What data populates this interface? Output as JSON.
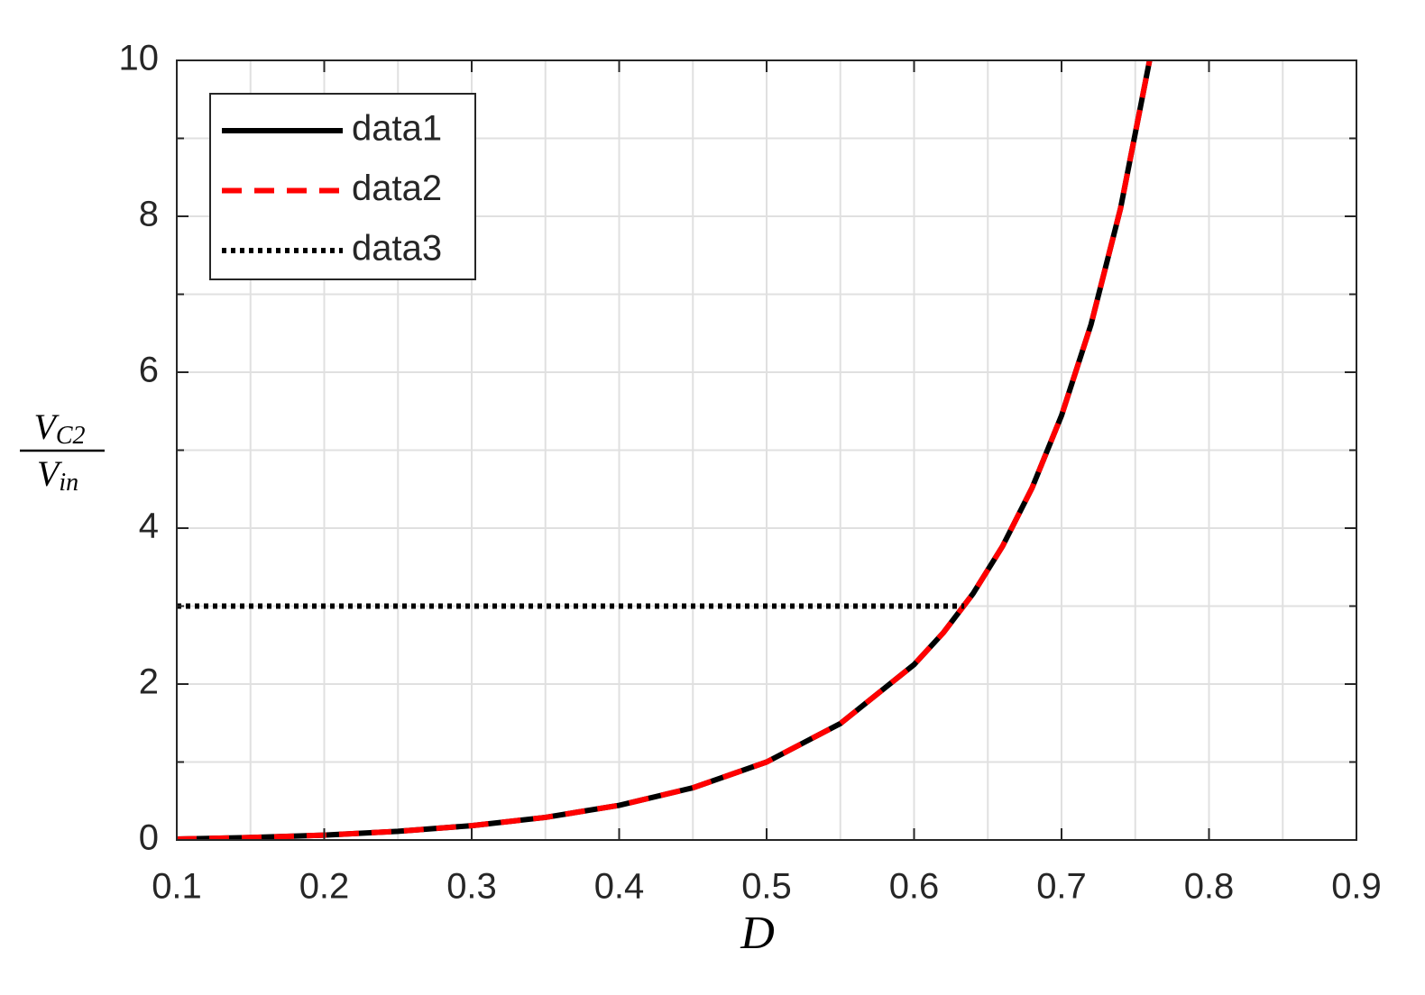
{
  "chart_data": {
    "type": "line",
    "xlabel": "D",
    "ylabel": {
      "numerator": {
        "base": "V",
        "sub": "C2"
      },
      "denominator": {
        "base": "V",
        "sub": "in"
      }
    },
    "xlim": [
      0.1,
      0.9
    ],
    "xticks": [
      0.1,
      0.2,
      0.3,
      0.4,
      0.5,
      0.6,
      0.7,
      0.8,
      0.9
    ],
    "ylim": [
      0,
      10
    ],
    "yticks": [
      0,
      2,
      4,
      6,
      8,
      10
    ],
    "grid": true,
    "minor_grid": true,
    "legend": "upper left",
    "series": [
      {
        "name": "data1",
        "color": "#000000",
        "style": "solid",
        "x": [
          0.1,
          0.15,
          0.2,
          0.25,
          0.3,
          0.35,
          0.4,
          0.45,
          0.5,
          0.55,
          0.6,
          0.62,
          0.64,
          0.66,
          0.68,
          0.7,
          0.72,
          0.74,
          0.76
        ],
        "values": [
          0.0123,
          0.0311,
          0.0625,
          0.1111,
          0.1837,
          0.2899,
          0.4444,
          0.6694,
          1,
          1.4938,
          2.25,
          2.662,
          3.1605,
          3.7682,
          4.5156,
          5.4444,
          6.6122,
          8.1006,
          10.0278
        ]
      },
      {
        "name": "data2",
        "color": "#ff0000",
        "style": "dashed",
        "x": [
          0.1,
          0.15,
          0.2,
          0.25,
          0.3,
          0.35,
          0.4,
          0.45,
          0.5,
          0.55,
          0.6,
          0.62,
          0.64,
          0.66,
          0.68,
          0.7,
          0.72,
          0.74,
          0.76
        ],
        "values": [
          0.0123,
          0.0311,
          0.0625,
          0.1111,
          0.1837,
          0.2899,
          0.4444,
          0.6694,
          1,
          1.4938,
          2.25,
          2.662,
          3.1605,
          3.7682,
          4.5156,
          5.4444,
          6.6122,
          8.1006,
          10.0278
        ]
      },
      {
        "name": "data3",
        "color": "#000000",
        "style": "dotted",
        "x": [
          0.1,
          0.634
        ],
        "values": [
          3,
          3
        ]
      }
    ]
  }
}
